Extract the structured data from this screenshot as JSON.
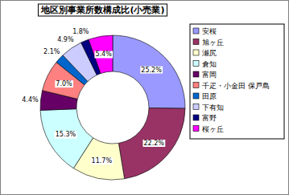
{
  "chart_data": {
    "type": "pie",
    "title": "地区別事業所数構成比(小売業)",
    "categories": [
      "安桜",
      "旭ヶ丘",
      "瀬尻",
      "倉知",
      "富岡",
      "千疋・小金田 保戸島",
      "田原",
      "下有知",
      "富野",
      "桜ヶ丘"
    ],
    "values": [
      25.2,
      22.2,
      11.7,
      15.3,
      4.4,
      7.0,
      2.1,
      4.9,
      1.8,
      5.4
    ],
    "value_labels": [
      "25.2%",
      "22.2%",
      "11.7%",
      "15.3%",
      "4.4%",
      "7.0%",
      "2.1%",
      "4.9%",
      "1.8%",
      "5.4%"
    ],
    "colors": [
      "#9999ff",
      "#993366",
      "#ffffcc",
      "#ccffff",
      "#660066",
      "#ff8080",
      "#0066cc",
      "#ccccff",
      "#000080",
      "#ff00ff"
    ],
    "data_labels": true,
    "legend": "right"
  }
}
